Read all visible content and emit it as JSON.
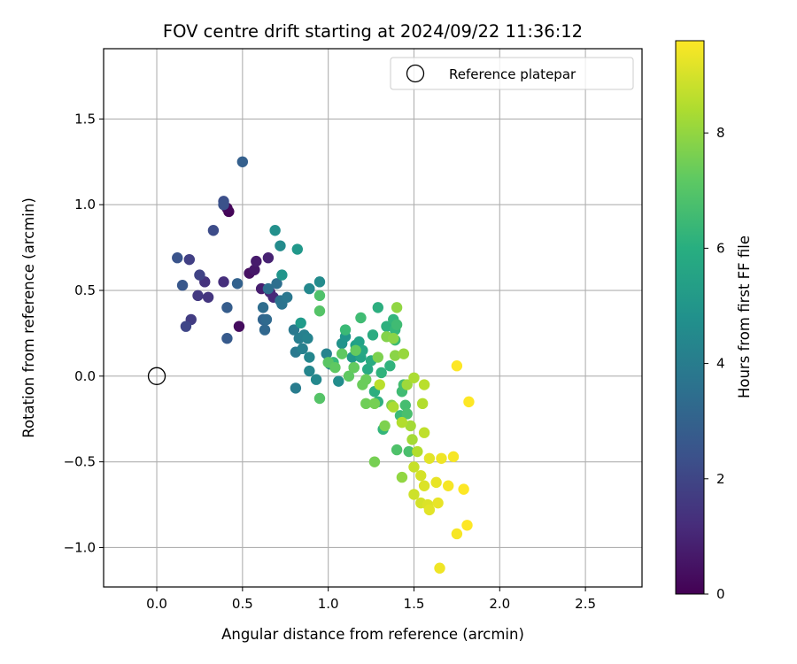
{
  "chart_data": {
    "type": "scatter",
    "title": "FOV centre drift starting at 2024/09/22 11:36:12",
    "xlabel": "Angular distance from reference (arcmin)",
    "ylabel": "Rotation from reference (arcmin)",
    "xlim": [
      -0.31,
      2.83
    ],
    "ylim": [
      -1.23,
      1.91
    ],
    "xticks": [
      0.0,
      0.5,
      1.0,
      1.5,
      2.0,
      2.5
    ],
    "xtick_labels": [
      "0.0",
      "0.5",
      "1.0",
      "1.5",
      "2.0",
      "2.5"
    ],
    "yticks": [
      -1.0,
      -0.5,
      0.0,
      0.5,
      1.0,
      1.5
    ],
    "ytick_labels": [
      "−1.0",
      "−0.5",
      "0.0",
      "0.5",
      "1.0",
      "1.5"
    ],
    "grid": true,
    "legend": {
      "position": "top-right",
      "entries": [
        "Reference platepar"
      ]
    },
    "reference_point": {
      "x": 0.0,
      "y": 0.0
    },
    "colorbar": {
      "label": "Hours from first FF file",
      "colormap": "viridis",
      "range": [
        0,
        9.6
      ],
      "ticks": [
        0,
        2,
        4,
        6,
        8
      ],
      "tick_labels": [
        "0",
        "2",
        "4",
        "6",
        "8"
      ]
    },
    "points": [
      {
        "x": 0.42,
        "y": 0.96,
        "h": 0.1
      },
      {
        "x": 0.41,
        "y": 0.98,
        "h": 0.2
      },
      {
        "x": 0.48,
        "y": 0.29,
        "h": 0.3
      },
      {
        "x": 0.54,
        "y": 0.6,
        "h": 0.4
      },
      {
        "x": 0.57,
        "y": 0.62,
        "h": 0.6
      },
      {
        "x": 0.58,
        "y": 0.67,
        "h": 0.7
      },
      {
        "x": 0.61,
        "y": 0.51,
        "h": 0.8
      },
      {
        "x": 0.65,
        "y": 0.69,
        "h": 0.9
      },
      {
        "x": 0.66,
        "y": 0.49,
        "h": 1.0
      },
      {
        "x": 0.68,
        "y": 0.46,
        "h": 1.1
      },
      {
        "x": 0.39,
        "y": 0.55,
        "h": 1.3
      },
      {
        "x": 0.28,
        "y": 0.55,
        "h": 1.4
      },
      {
        "x": 0.3,
        "y": 0.46,
        "h": 1.5
      },
      {
        "x": 0.24,
        "y": 0.47,
        "h": 1.6
      },
      {
        "x": 0.2,
        "y": 0.33,
        "h": 1.7
      },
      {
        "x": 0.19,
        "y": 0.68,
        "h": 1.8
      },
      {
        "x": 0.25,
        "y": 0.59,
        "h": 1.9
      },
      {
        "x": 0.17,
        "y": 0.29,
        "h": 2.0
      },
      {
        "x": 0.33,
        "y": 0.85,
        "h": 2.2
      },
      {
        "x": 0.39,
        "y": 1.02,
        "h": 2.3
      },
      {
        "x": 0.39,
        "y": 1.0,
        "h": 2.4
      },
      {
        "x": 0.12,
        "y": 0.69,
        "h": 2.5
      },
      {
        "x": 0.15,
        "y": 0.53,
        "h": 2.6
      },
      {
        "x": 0.41,
        "y": 0.22,
        "h": 2.7
      },
      {
        "x": 0.41,
        "y": 0.4,
        "h": 2.8
      },
      {
        "x": 0.5,
        "y": 1.25,
        "h": 2.9
      },
      {
        "x": 0.47,
        "y": 0.54,
        "h": 3.0
      },
      {
        "x": 0.62,
        "y": 0.33,
        "h": 3.1
      },
      {
        "x": 0.63,
        "y": 0.27,
        "h": 3.2
      },
      {
        "x": 0.64,
        "y": 0.33,
        "h": 3.3
      },
      {
        "x": 0.62,
        "y": 0.4,
        "h": 3.4
      },
      {
        "x": 0.65,
        "y": 0.51,
        "h": 3.5
      },
      {
        "x": 0.7,
        "y": 0.54,
        "h": 3.5
      },
      {
        "x": 0.72,
        "y": 0.44,
        "h": 3.6
      },
      {
        "x": 0.73,
        "y": 0.42,
        "h": 3.7
      },
      {
        "x": 0.76,
        "y": 0.46,
        "h": 3.8
      },
      {
        "x": 0.8,
        "y": 0.27,
        "h": 3.9
      },
      {
        "x": 0.81,
        "y": 0.14,
        "h": 3.9
      },
      {
        "x": 0.81,
        "y": -0.07,
        "h": 4.0
      },
      {
        "x": 0.83,
        "y": 0.22,
        "h": 4.1
      },
      {
        "x": 0.85,
        "y": 0.16,
        "h": 4.2
      },
      {
        "x": 0.86,
        "y": 0.24,
        "h": 4.2
      },
      {
        "x": 0.88,
        "y": 0.22,
        "h": 4.3
      },
      {
        "x": 0.89,
        "y": 0.11,
        "h": 4.4
      },
      {
        "x": 0.89,
        "y": 0.03,
        "h": 4.4
      },
      {
        "x": 0.93,
        "y": -0.02,
        "h": 4.5
      },
      {
        "x": 0.89,
        "y": 0.51,
        "h": 4.5
      },
      {
        "x": 0.95,
        "y": 0.55,
        "h": 4.6
      },
      {
        "x": 0.72,
        "y": 0.76,
        "h": 4.6
      },
      {
        "x": 0.69,
        "y": 0.85,
        "h": 4.8
      },
      {
        "x": 0.73,
        "y": 0.59,
        "h": 5.0
      },
      {
        "x": 0.82,
        "y": 0.74,
        "h": 5.1
      },
      {
        "x": 0.84,
        "y": 0.31,
        "h": 5.2
      },
      {
        "x": 0.99,
        "y": 0.13,
        "h": 4.3
      },
      {
        "x": 1.01,
        "y": 0.07,
        "h": 4.4
      },
      {
        "x": 1.06,
        "y": -0.03,
        "h": 4.7
      },
      {
        "x": 1.08,
        "y": 0.19,
        "h": 4.9
      },
      {
        "x": 1.1,
        "y": 0.23,
        "h": 5.0
      },
      {
        "x": 1.14,
        "y": 0.11,
        "h": 5.1
      },
      {
        "x": 1.15,
        "y": 0.05,
        "h": 5.3
      },
      {
        "x": 1.16,
        "y": 0.18,
        "h": 5.4
      },
      {
        "x": 1.18,
        "y": 0.2,
        "h": 5.5
      },
      {
        "x": 1.19,
        "y": 0.11,
        "h": 5.6
      },
      {
        "x": 1.2,
        "y": 0.15,
        "h": 5.7
      },
      {
        "x": 1.23,
        "y": 0.04,
        "h": 5.8
      },
      {
        "x": 1.25,
        "y": 0.09,
        "h": 5.9
      },
      {
        "x": 1.26,
        "y": 0.24,
        "h": 5.9
      },
      {
        "x": 1.27,
        "y": -0.09,
        "h": 6.0
      },
      {
        "x": 1.29,
        "y": -0.15,
        "h": 6.1
      },
      {
        "x": 1.29,
        "y": 0.4,
        "h": 6.0
      },
      {
        "x": 1.31,
        "y": 0.02,
        "h": 6.2
      },
      {
        "x": 1.32,
        "y": -0.31,
        "h": 6.3
      },
      {
        "x": 1.34,
        "y": 0.29,
        "h": 6.1
      },
      {
        "x": 1.36,
        "y": 0.06,
        "h": 6.2
      },
      {
        "x": 1.38,
        "y": 0.33,
        "h": 6.3
      },
      {
        "x": 1.39,
        "y": 0.27,
        "h": 6.4
      },
      {
        "x": 1.39,
        "y": 0.21,
        "h": 6.5
      },
      {
        "x": 1.4,
        "y": 0.3,
        "h": 6.6
      },
      {
        "x": 1.42,
        "y": -0.23,
        "h": 6.5
      },
      {
        "x": 1.43,
        "y": -0.09,
        "h": 6.6
      },
      {
        "x": 1.44,
        "y": -0.05,
        "h": 6.7
      },
      {
        "x": 1.45,
        "y": -0.17,
        "h": 6.7
      },
      {
        "x": 1.46,
        "y": -0.22,
        "h": 6.8
      },
      {
        "x": 1.47,
        "y": -0.44,
        "h": 6.8
      },
      {
        "x": 1.4,
        "y": -0.43,
        "h": 6.9
      },
      {
        "x": 1.03,
        "y": 0.08,
        "h": 6.4
      },
      {
        "x": 1.1,
        "y": 0.27,
        "h": 6.5
      },
      {
        "x": 1.19,
        "y": 0.34,
        "h": 6.6
      },
      {
        "x": 0.95,
        "y": 0.47,
        "h": 6.9
      },
      {
        "x": 0.95,
        "y": 0.38,
        "h": 7.0
      },
      {
        "x": 0.95,
        "y": -0.13,
        "h": 7.0
      },
      {
        "x": 1.0,
        "y": 0.08,
        "h": 7.1
      },
      {
        "x": 1.04,
        "y": 0.05,
        "h": 7.2
      },
      {
        "x": 1.08,
        "y": 0.13,
        "h": 7.2
      },
      {
        "x": 1.12,
        "y": 0.0,
        "h": 7.2
      },
      {
        "x": 1.15,
        "y": 0.05,
        "h": 7.3
      },
      {
        "x": 1.16,
        "y": 0.15,
        "h": 7.3
      },
      {
        "x": 1.2,
        "y": -0.05,
        "h": 7.4
      },
      {
        "x": 1.22,
        "y": -0.02,
        "h": 7.4
      },
      {
        "x": 1.22,
        "y": -0.16,
        "h": 7.5
      },
      {
        "x": 1.27,
        "y": -0.5,
        "h": 7.6
      },
      {
        "x": 1.27,
        "y": -0.16,
        "h": 7.6
      },
      {
        "x": 1.29,
        "y": 0.11,
        "h": 7.7
      },
      {
        "x": 1.33,
        "y": -0.29,
        "h": 7.7
      },
      {
        "x": 1.34,
        "y": 0.23,
        "h": 7.8
      },
      {
        "x": 1.37,
        "y": -0.17,
        "h": 7.8
      },
      {
        "x": 1.38,
        "y": 0.22,
        "h": 7.9
      },
      {
        "x": 1.39,
        "y": 0.12,
        "h": 7.9
      },
      {
        "x": 1.4,
        "y": 0.4,
        "h": 8.0
      },
      {
        "x": 1.43,
        "y": -0.59,
        "h": 8.0
      },
      {
        "x": 1.44,
        "y": 0.13,
        "h": 8.1
      },
      {
        "x": 1.46,
        "y": -0.05,
        "h": 8.2
      },
      {
        "x": 1.48,
        "y": -0.29,
        "h": 8.3
      },
      {
        "x": 1.49,
        "y": -0.37,
        "h": 8.3
      },
      {
        "x": 1.5,
        "y": -0.01,
        "h": 8.4
      },
      {
        "x": 1.38,
        "y": -0.18,
        "h": 8.4
      },
      {
        "x": 1.43,
        "y": -0.27,
        "h": 8.5
      },
      {
        "x": 1.52,
        "y": -0.44,
        "h": 8.5
      },
      {
        "x": 1.55,
        "y": -0.16,
        "h": 8.5
      },
      {
        "x": 1.56,
        "y": -0.05,
        "h": 8.6
      },
      {
        "x": 1.56,
        "y": -0.33,
        "h": 8.7
      },
      {
        "x": 1.3,
        "y": -0.05,
        "h": 8.6
      },
      {
        "x": 1.5,
        "y": -0.53,
        "h": 8.8
      },
      {
        "x": 1.5,
        "y": -0.69,
        "h": 8.9
      },
      {
        "x": 1.54,
        "y": -0.58,
        "h": 9.0
      },
      {
        "x": 1.54,
        "y": -0.74,
        "h": 9.0
      },
      {
        "x": 1.56,
        "y": -0.64,
        "h": 9.1
      },
      {
        "x": 1.58,
        "y": -0.75,
        "h": 9.1
      },
      {
        "x": 1.59,
        "y": -0.48,
        "h": 9.2
      },
      {
        "x": 1.59,
        "y": -0.78,
        "h": 9.2
      },
      {
        "x": 1.63,
        "y": -0.62,
        "h": 9.3
      },
      {
        "x": 1.64,
        "y": -0.74,
        "h": 9.3
      },
      {
        "x": 1.66,
        "y": -0.48,
        "h": 9.4
      },
      {
        "x": 1.65,
        "y": -1.12,
        "h": 9.4
      },
      {
        "x": 1.7,
        "y": -0.64,
        "h": 9.5
      },
      {
        "x": 1.73,
        "y": -0.47,
        "h": 9.5
      },
      {
        "x": 1.75,
        "y": -0.92,
        "h": 9.5
      },
      {
        "x": 1.75,
        "y": 0.06,
        "h": 9.6
      },
      {
        "x": 1.79,
        "y": -0.66,
        "h": 9.6
      },
      {
        "x": 1.81,
        "y": -0.87,
        "h": 9.6
      },
      {
        "x": 1.82,
        "y": -0.15,
        "h": 9.6
      }
    ]
  }
}
